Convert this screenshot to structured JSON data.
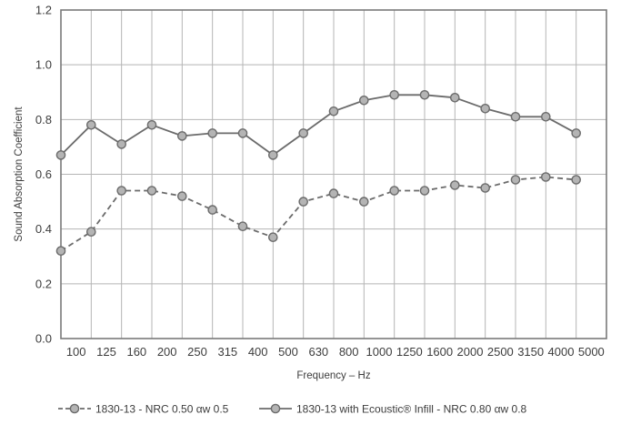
{
  "chart_data": {
    "type": "line",
    "title": "",
    "xlabel": "Frequency – Hz",
    "ylabel": "Sound Absorption Coefficient",
    "categories": [
      "100",
      "125",
      "160",
      "200",
      "250",
      "315",
      "400",
      "500",
      "630",
      "800",
      "1000",
      "1250",
      "1600",
      "2000",
      "2500",
      "3150",
      "4000",
      "5000"
    ],
    "y_ticks": [
      "0.0",
      "0.2",
      "0.4",
      "0.6",
      "0.8",
      "1.0",
      "1.2"
    ],
    "ylim": [
      0,
      1.2
    ],
    "grid": true,
    "legend_position": "bottom",
    "series": [
      {
        "name": "1830-13 - NRC 0.50  αw 0.5",
        "line_style": "dashed",
        "values": [
          0.32,
          0.39,
          0.54,
          0.54,
          0.52,
          0.47,
          0.41,
          0.37,
          0.5,
          0.53,
          0.5,
          0.54,
          0.54,
          0.56,
          0.55,
          0.58,
          0.59,
          0.58
        ]
      },
      {
        "name": "1830-13 with Ecoustic® Infill - NRC 0.80  αw 0.8",
        "line_style": "solid",
        "values": [
          0.67,
          0.78,
          0.71,
          0.78,
          0.74,
          0.75,
          0.75,
          0.67,
          0.75,
          0.83,
          0.87,
          0.89,
          0.89,
          0.88,
          0.84,
          0.81,
          0.81,
          0.75
        ]
      }
    ]
  },
  "colors": {
    "line": "#6b6b6b",
    "marker_fill": "#b4b4b4",
    "marker_stroke": "#6b6b6b",
    "grid": "#b5b5b5",
    "frame": "#7a7a7a",
    "text": "#3c3c3c"
  }
}
